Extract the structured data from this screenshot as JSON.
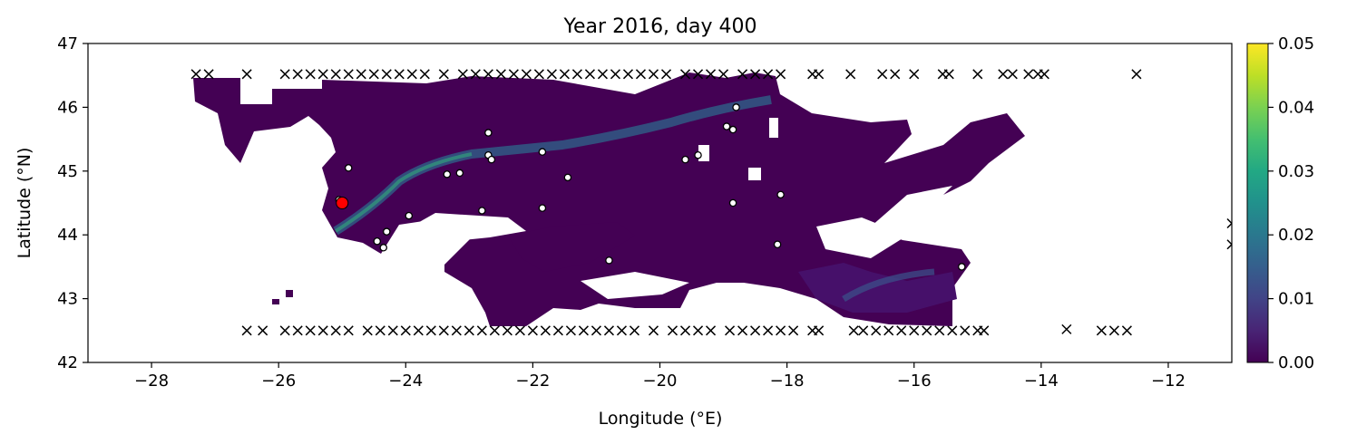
{
  "chart_data": {
    "type": "heatmap",
    "title": "Year 2016, day 400",
    "xlabel": "Longitude (°E)",
    "ylabel": "Latitude (°N)",
    "xlim": [
      -29,
      -11
    ],
    "ylim": [
      42,
      47
    ],
    "x_ticks": [
      -28,
      -26,
      -24,
      -22,
      -20,
      -18,
      -16,
      -14,
      -12
    ],
    "x_tick_labels": [
      "−28",
      "−26",
      "−24",
      "−22",
      "−20",
      "−18",
      "−16",
      "−14",
      "−12"
    ],
    "y_ticks": [
      42,
      43,
      44,
      45,
      46,
      47
    ],
    "y_tick_labels": [
      "42",
      "43",
      "44",
      "45",
      "46",
      "47"
    ],
    "colorbar": {
      "colormap": "viridis",
      "range": [
        0,
        0.05
      ],
      "ticks": [
        0,
        0.01,
        0.02,
        0.03,
        0.04,
        0.05
      ],
      "tick_labels": [
        "0.00",
        "0.01",
        "0.02",
        "0.03",
        "0.04",
        "0.05"
      ]
    },
    "grid": false,
    "colors": {
      "field_base": "#440154",
      "field_dim": "#471366",
      "field_mid": "#3b528b",
      "highlight": "#ff0000"
    },
    "highlight_point": {
      "x": -25.0,
      "y": 44.5
    },
    "open_circles": [
      [
        -24.9,
        45.05
      ],
      [
        -25.05,
        44.55
      ],
      [
        -24.3,
        44.05
      ],
      [
        -24.45,
        43.9
      ],
      [
        -24.35,
        43.8
      ],
      [
        -23.95,
        44.3
      ],
      [
        -23.35,
        44.95
      ],
      [
        -23.15,
        44.97
      ],
      [
        -22.7,
        45.6
      ],
      [
        -22.7,
        45.25
      ],
      [
        -22.65,
        45.18
      ],
      [
        -22.8,
        44.38
      ],
      [
        -21.85,
        45.3
      ],
      [
        -21.85,
        44.42
      ],
      [
        -21.45,
        44.9
      ],
      [
        -20.8,
        43.6
      ],
      [
        -19.6,
        45.18
      ],
      [
        -19.4,
        45.25
      ],
      [
        -18.95,
        45.7
      ],
      [
        -18.85,
        45.65
      ],
      [
        -18.8,
        46.0
      ],
      [
        -18.85,
        44.5
      ],
      [
        -18.1,
        44.63
      ],
      [
        -18.15,
        43.85
      ],
      [
        -15.25,
        43.5
      ]
    ],
    "crosses_north": [
      [
        -27.3,
        46.52
      ],
      [
        -27.1,
        46.52
      ],
      [
        -26.5,
        46.52
      ],
      [
        -25.9,
        46.52
      ],
      [
        -25.7,
        46.52
      ],
      [
        -25.5,
        46.52
      ],
      [
        -25.3,
        46.52
      ],
      [
        -25.1,
        46.52
      ],
      [
        -24.9,
        46.52
      ],
      [
        -24.7,
        46.52
      ],
      [
        -24.5,
        46.52
      ],
      [
        -24.3,
        46.52
      ],
      [
        -24.1,
        46.52
      ],
      [
        -23.9,
        46.52
      ],
      [
        -23.7,
        46.52
      ],
      [
        -23.4,
        46.52
      ],
      [
        -23.1,
        46.52
      ],
      [
        -22.9,
        46.52
      ],
      [
        -22.7,
        46.52
      ],
      [
        -22.5,
        46.52
      ],
      [
        -22.3,
        46.52
      ],
      [
        -22.1,
        46.52
      ],
      [
        -21.9,
        46.52
      ],
      [
        -21.7,
        46.52
      ],
      [
        -21.5,
        46.52
      ],
      [
        -21.3,
        46.52
      ],
      [
        -21.1,
        46.52
      ],
      [
        -20.9,
        46.52
      ],
      [
        -20.7,
        46.52
      ],
      [
        -20.5,
        46.52
      ],
      [
        -20.3,
        46.52
      ],
      [
        -20.1,
        46.52
      ],
      [
        -19.9,
        46.52
      ],
      [
        -19.6,
        46.52
      ],
      [
        -19.4,
        46.52
      ],
      [
        -19.2,
        46.52
      ],
      [
        -19.0,
        46.52
      ],
      [
        -18.7,
        46.52
      ],
      [
        -18.5,
        46.52
      ],
      [
        -18.3,
        46.52
      ],
      [
        -18.1,
        46.52
      ],
      [
        -17.6,
        46.52
      ],
      [
        -17.5,
        46.52
      ],
      [
        -17.0,
        46.52
      ],
      [
        -16.5,
        46.52
      ],
      [
        -16.3,
        46.52
      ],
      [
        -16.0,
        46.52
      ],
      [
        -15.55,
        46.52
      ],
      [
        -15.45,
        46.52
      ],
      [
        -15.0,
        46.52
      ],
      [
        -14.6,
        46.52
      ],
      [
        -14.45,
        46.52
      ],
      [
        -14.2,
        46.52
      ],
      [
        -14.05,
        46.52
      ],
      [
        -13.95,
        46.52
      ],
      [
        -12.5,
        46.52
      ]
    ],
    "crosses_south": [
      [
        -26.5,
        42.5
      ],
      [
        -26.25,
        42.5
      ],
      [
        -25.9,
        42.5
      ],
      [
        -25.7,
        42.5
      ],
      [
        -25.5,
        42.5
      ],
      [
        -25.3,
        42.5
      ],
      [
        -25.1,
        42.5
      ],
      [
        -24.9,
        42.5
      ],
      [
        -24.6,
        42.5
      ],
      [
        -24.4,
        42.5
      ],
      [
        -24.2,
        42.5
      ],
      [
        -24.0,
        42.5
      ],
      [
        -23.8,
        42.5
      ],
      [
        -23.6,
        42.5
      ],
      [
        -23.4,
        42.5
      ],
      [
        -23.2,
        42.5
      ],
      [
        -23.0,
        42.5
      ],
      [
        -22.8,
        42.5
      ],
      [
        -22.6,
        42.5
      ],
      [
        -22.4,
        42.5
      ],
      [
        -22.2,
        42.5
      ],
      [
        -22.0,
        42.5
      ],
      [
        -21.8,
        42.5
      ],
      [
        -21.6,
        42.5
      ],
      [
        -21.4,
        42.5
      ],
      [
        -21.2,
        42.5
      ],
      [
        -21.0,
        42.5
      ],
      [
        -20.8,
        42.5
      ],
      [
        -20.6,
        42.5
      ],
      [
        -20.4,
        42.5
      ],
      [
        -20.1,
        42.5
      ],
      [
        -19.8,
        42.5
      ],
      [
        -19.6,
        42.5
      ],
      [
        -19.4,
        42.5
      ],
      [
        -19.2,
        42.5
      ],
      [
        -18.9,
        42.5
      ],
      [
        -18.7,
        42.5
      ],
      [
        -18.5,
        42.5
      ],
      [
        -18.3,
        42.5
      ],
      [
        -18.1,
        42.5
      ],
      [
        -17.9,
        42.5
      ],
      [
        -17.6,
        42.5
      ],
      [
        -17.5,
        42.5
      ],
      [
        -16.95,
        42.5
      ],
      [
        -16.8,
        42.5
      ],
      [
        -16.6,
        42.5
      ],
      [
        -16.4,
        42.5
      ],
      [
        -16.2,
        42.5
      ],
      [
        -16.0,
        42.5
      ],
      [
        -15.8,
        42.5
      ],
      [
        -15.6,
        42.5
      ],
      [
        -15.4,
        42.5
      ],
      [
        -15.2,
        42.5
      ],
      [
        -15.0,
        42.5
      ],
      [
        -14.9,
        42.5
      ],
      [
        -13.6,
        42.52
      ],
      [
        -13.05,
        42.5
      ],
      [
        -12.85,
        42.5
      ],
      [
        -12.65,
        42.5
      ]
    ],
    "crosses_east": [
      [
        -11.0,
        44.18
      ],
      [
        -11.0,
        43.85
      ]
    ]
  }
}
